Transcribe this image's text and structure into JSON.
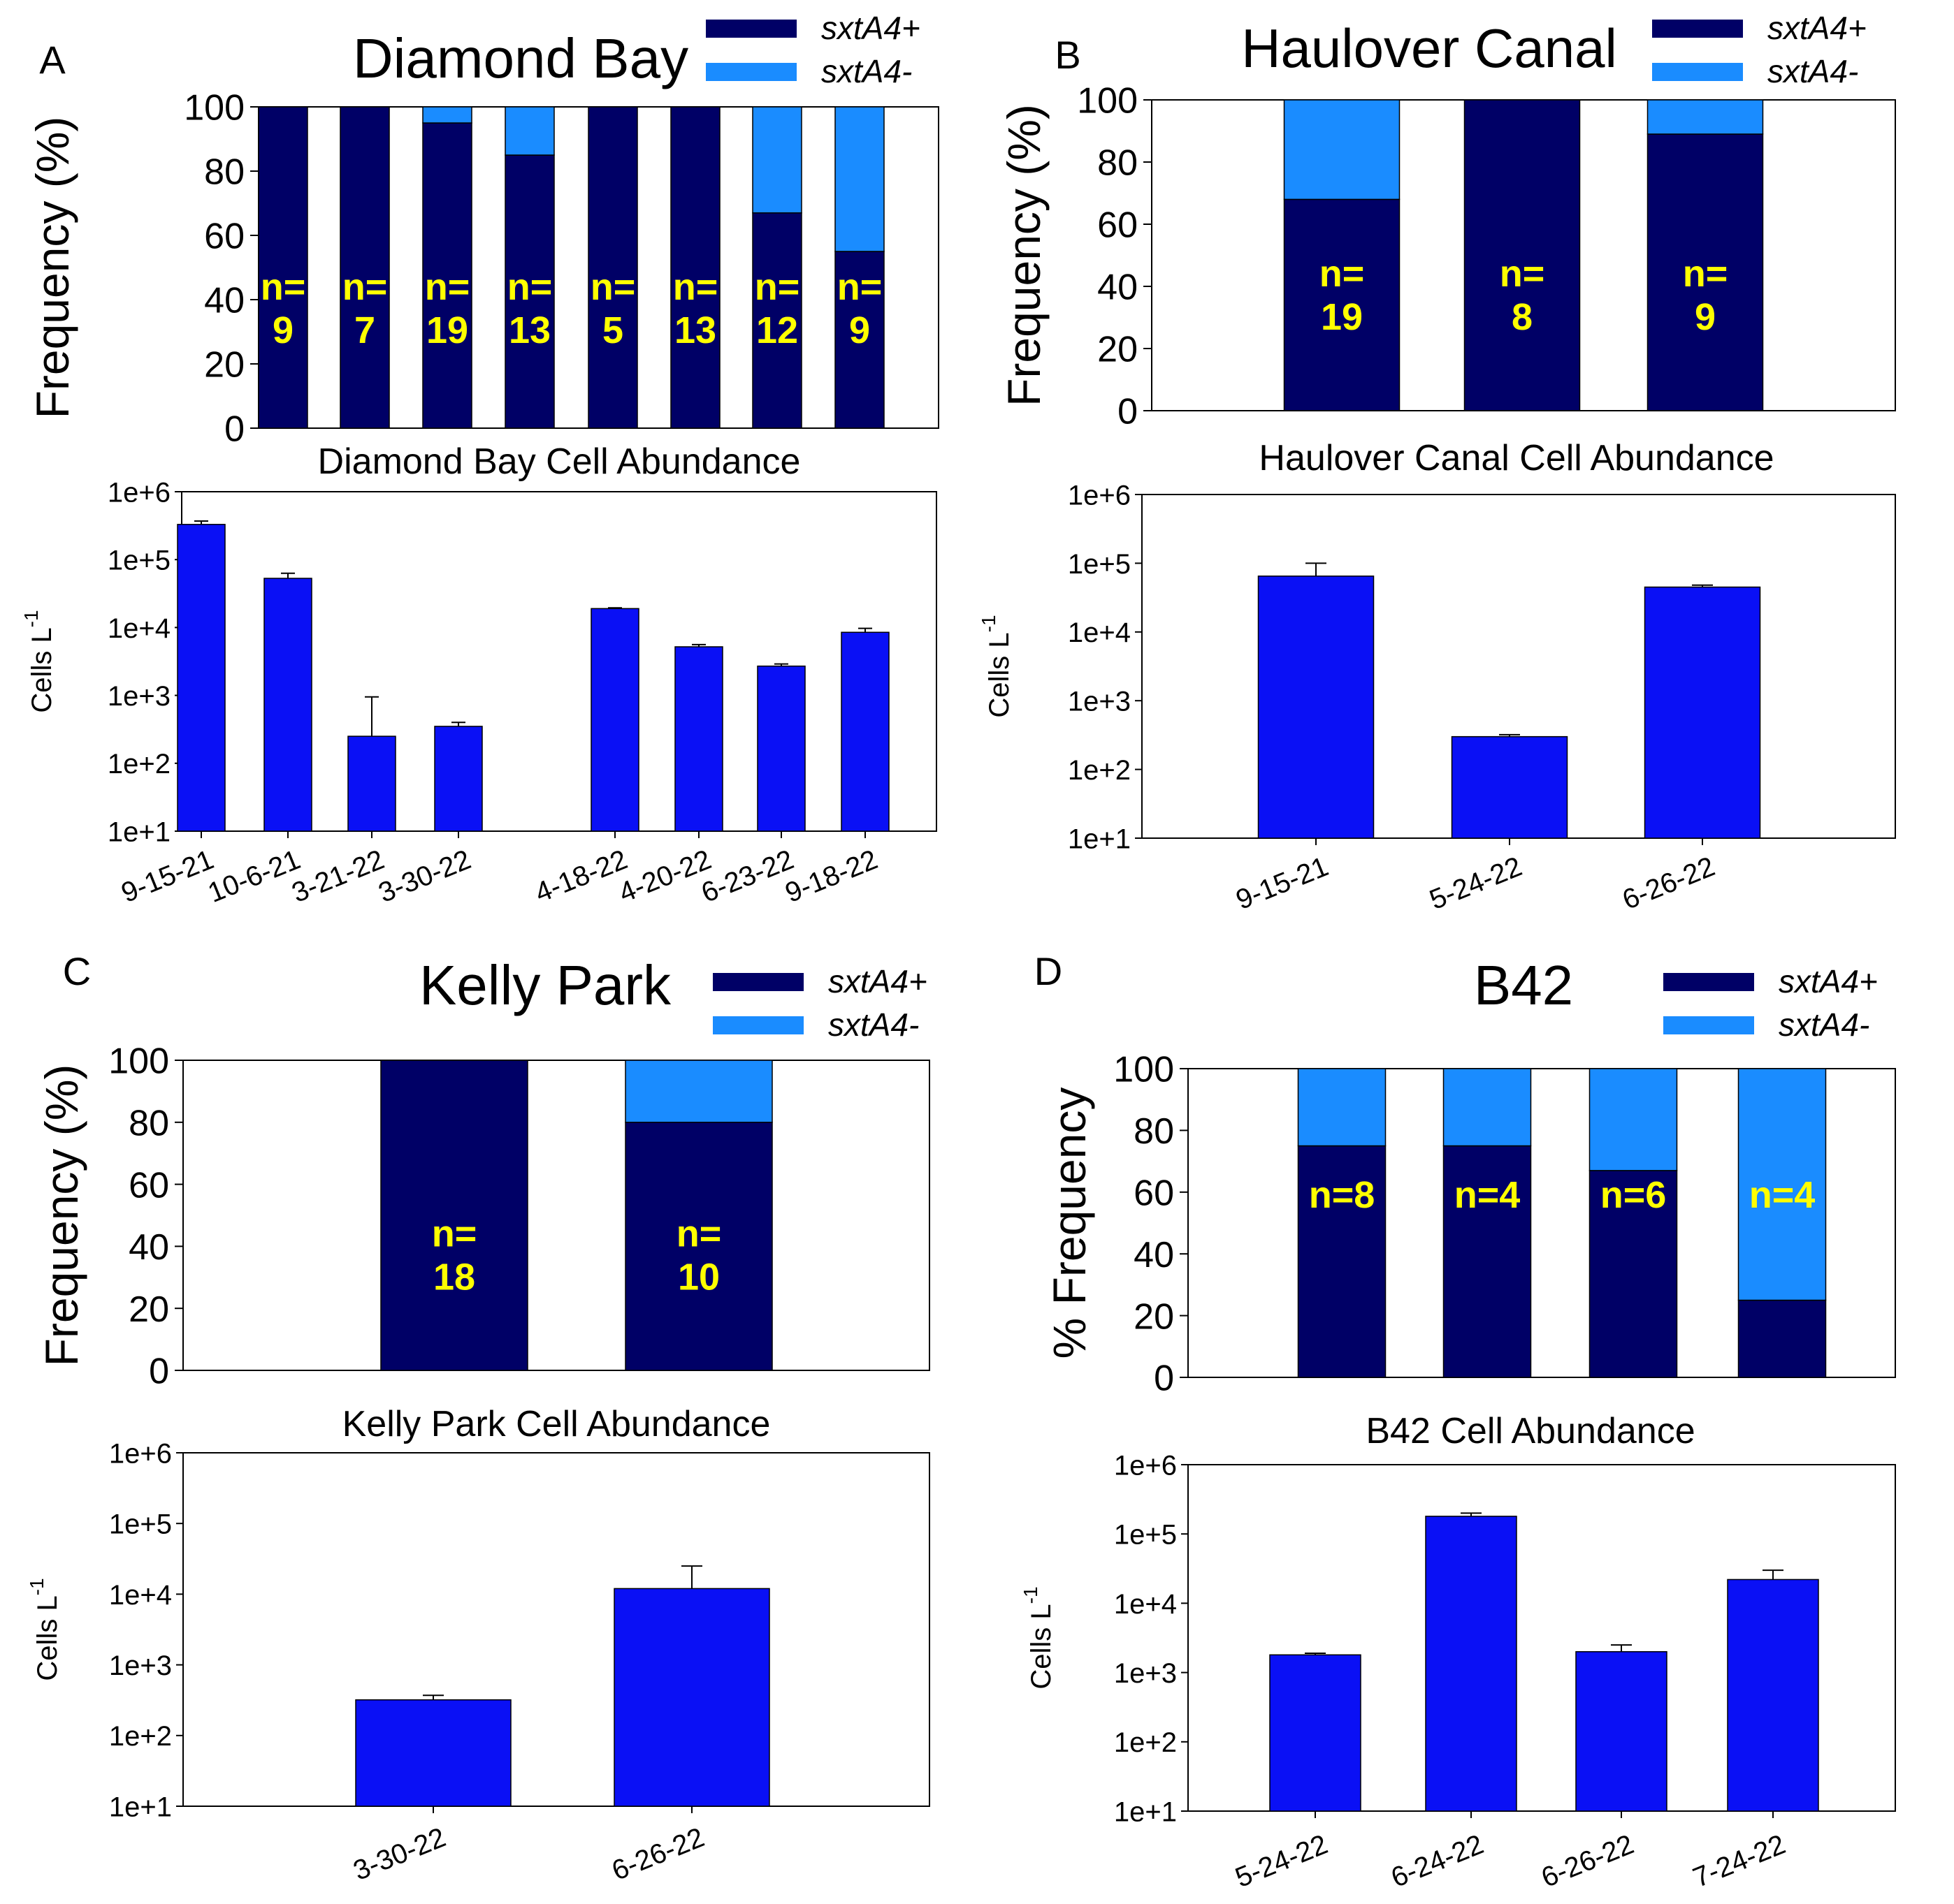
{
  "colors": {
    "positive": "#000066",
    "negative": "#1a8cff",
    "abundance": "#0a10f5",
    "label": "#ffff00",
    "axis": "#000000"
  },
  "chart_data": [
    {
      "panel": "A",
      "type": "bar",
      "stacked": true,
      "title": "Diamond Bay",
      "ylabel": "Frequency (%)",
      "ylim": [
        0,
        100
      ],
      "yticks": [
        "0",
        "20",
        "40",
        "60",
        "80",
        "100"
      ],
      "legend_placement": "top-right",
      "categories": [
        "9-15-21",
        "10-6-21",
        "3-21-22",
        "3-30-22",
        "4-18-22",
        "4-20-22",
        "6-23-22",
        "9-18-22"
      ],
      "series": [
        {
          "name": "sxtA4+",
          "values": [
            100,
            100,
            95,
            85,
            100,
            100,
            67,
            55
          ]
        },
        {
          "name": "sxtA4-",
          "values": [
            0,
            0,
            5,
            15,
            0,
            0,
            33,
            45
          ]
        }
      ],
      "n_labels": [
        "n=\n9",
        "n=\n7",
        "n=\n19",
        "n=\n13",
        "n=\n5",
        "n=\n13",
        "n=\n12",
        "n=\n9"
      ]
    },
    {
      "panel": "A",
      "type": "bar",
      "title": "Diamond Bay Cell Abundance",
      "ylabel": "Cells L-1",
      "yscale": "log",
      "ylim": [
        10,
        1000000
      ],
      "yticks": [
        "1e+1",
        "1e+2",
        "1e+3",
        "1e+4",
        "1e+5",
        "1e+6"
      ],
      "categories": [
        "9-15-21",
        "10-6-21",
        "3-21-22",
        "3-30-22",
        "4-18-22",
        "4-20-22",
        "6-23-22",
        "9-18-22"
      ],
      "values": [
        330000,
        53000,
        250,
        350,
        19000,
        5200,
        2700,
        8500
      ],
      "error_upper": [
        370000,
        63000,
        950,
        400,
        19500,
        5600,
        2900,
        9700
      ]
    },
    {
      "panel": "B",
      "type": "bar",
      "stacked": true,
      "title": "Haulover Canal",
      "ylabel": "Frequency (%)",
      "ylim": [
        0,
        100
      ],
      "yticks": [
        "0",
        "20",
        "40",
        "60",
        "80",
        "100"
      ],
      "legend_placement": "top-right",
      "categories": [
        "9-15-21",
        "5-24-22",
        "6-26-22"
      ],
      "series": [
        {
          "name": "sxtA4+",
          "values": [
            68,
            100,
            89
          ]
        },
        {
          "name": "sxtA4-",
          "values": [
            32,
            0,
            11
          ]
        }
      ],
      "n_labels": [
        "n=\n19",
        "n=\n8",
        "n=\n9"
      ]
    },
    {
      "panel": "B",
      "type": "bar",
      "title": "Haulover Canal Cell Abundance",
      "ylabel": "Cells L-1",
      "yscale": "log",
      "ylim": [
        10,
        1000000
      ],
      "yticks": [
        "1e+1",
        "1e+2",
        "1e+3",
        "1e+4",
        "1e+5",
        "1e+6"
      ],
      "categories": [
        "9-15-21",
        "5-24-22",
        "6-26-22"
      ],
      "values": [
        65000,
        300,
        45000
      ],
      "error_upper": [
        100000,
        320,
        48000
      ]
    },
    {
      "panel": "C",
      "type": "bar",
      "stacked": true,
      "title": "Kelly Park",
      "ylabel": "Frequency (%)",
      "ylim": [
        0,
        100
      ],
      "yticks": [
        "0",
        "20",
        "40",
        "60",
        "80",
        "100"
      ],
      "legend_placement": "top-right",
      "categories": [
        "3-30-22",
        "6-26-22"
      ],
      "series": [
        {
          "name": "sxtA4+",
          "values": [
            100,
            80
          ]
        },
        {
          "name": "sxtA4-",
          "values": [
            0,
            20
          ]
        }
      ],
      "n_labels": [
        "n=\n18",
        "n=\n10"
      ]
    },
    {
      "panel": "C",
      "type": "bar",
      "title": "Kelly Park Cell Abundance",
      "ylabel": "Cells L-1",
      "yscale": "log",
      "ylim": [
        10,
        1000000
      ],
      "yticks": [
        "1e+1",
        "1e+2",
        "1e+3",
        "1e+4",
        "1e+5",
        "1e+6"
      ],
      "categories": [
        "3-30-22",
        "6-26-22"
      ],
      "values": [
        320,
        12000
      ],
      "error_upper": [
        370,
        25000
      ]
    },
    {
      "panel": "D",
      "type": "bar",
      "stacked": true,
      "title": "B42",
      "ylabel": "% Frequency",
      "ylim": [
        0,
        100
      ],
      "yticks": [
        "0",
        "20",
        "40",
        "60",
        "80",
        "100"
      ],
      "legend_placement": "top-right",
      "categories": [
        "5-24-22",
        "6-24-22",
        "6-26-22",
        "7-24-22"
      ],
      "series": [
        {
          "name": "sxtA4+",
          "values": [
            75,
            75,
            67,
            25
          ]
        },
        {
          "name": "sxtA4-",
          "values": [
            25,
            25,
            33,
            75
          ]
        }
      ],
      "n_labels": [
        "n=8",
        "n=4",
        "n=6",
        "n=4"
      ]
    },
    {
      "panel": "D",
      "type": "bar",
      "title": "B42 Cell Abundance",
      "ylabel": "Cells L-1",
      "yscale": "log",
      "ylim": [
        10,
        1000000
      ],
      "yticks": [
        "1e+1",
        "1e+2",
        "1e+3",
        "1e+4",
        "1e+5",
        "1e+6"
      ],
      "categories": [
        "5-24-22",
        "6-24-22",
        "6-26-22",
        "7-24-22"
      ],
      "values": [
        1800,
        180000,
        2000,
        22000
      ],
      "error_upper": [
        1900,
        200000,
        2500,
        30000
      ]
    }
  ]
}
